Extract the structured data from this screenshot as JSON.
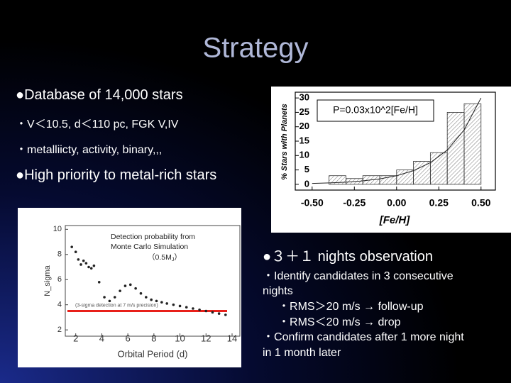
{
  "title": "Strategy",
  "left_bullets": [
    {
      "bullet": "●",
      "text": "Database of 14,000 stars"
    },
    {
      "bullet": "・",
      "text": "V＜10.5, d＜110 pc, FGK V,IV"
    },
    {
      "bullet": "・",
      "text": "metalliicty, activity, binary,,,"
    },
    {
      "bullet": "●",
      "text": "High priority to metal-rich stars"
    }
  ],
  "figure1": {
    "type": "histogram",
    "annotation": "P=0.03x10^2[Fe/H]",
    "ylabel": "% Stars with Planets",
    "xlabel": "[Fe/H]",
    "bins": [
      -0.5,
      -0.4,
      -0.3,
      -0.2,
      -0.1,
      0,
      0.1,
      0.2,
      0.3,
      0.4,
      0.5
    ],
    "values": [
      0,
      3,
      2,
      3,
      3,
      5,
      8,
      11,
      25,
      28
    ],
    "fit": {
      "x": [
        -0.5,
        -0.4,
        -0.3,
        -0.2,
        -0.1,
        0,
        0.1,
        0.2,
        0.3,
        0.4,
        0.5
      ],
      "y": [
        0.3,
        0.48,
        0.75,
        1.19,
        1.89,
        3,
        4.75,
        7.54,
        11.9,
        18.9,
        30
      ]
    },
    "xlim": [
      -0.6,
      0.585
    ],
    "ylim": [
      -2,
      32
    ],
    "xticks": [
      {
        "value": -0.5,
        "label": "-0.50"
      },
      {
        "value": -0.25,
        "label": "-0.25"
      },
      {
        "value": 0,
        "label": "0.00"
      },
      0.25,
      {
        "value": 0.5,
        "label": "0.50"
      }
    ],
    "yticks": [
      0,
      5,
      10,
      15,
      20,
      25,
      30
    ]
  },
  "figure2": {
    "type": "scatter",
    "annotation": [
      "Detection probability from",
      "Monte Carlo Simulation"
    ],
    "mass": {
      "prefix": "（0.5M",
      "sub": "J",
      "suffix": "）"
    },
    "threshold_label": "(3-sigma detection at 7 m/s precision)",
    "threshold": 3.5,
    "ylabel": "N_sigma",
    "xlabel": "Orbital Period (d)",
    "x": [
      1.7,
      2.0,
      2.2,
      2.4,
      2.6,
      2.8,
      3.0,
      3.2,
      3.4,
      3.8,
      4.2,
      4.6,
      5.0,
      5.4,
      5.8,
      6.2,
      6.6,
      7.0,
      7.4,
      7.8,
      8.2,
      8.6,
      9.0,
      9.5,
      10.0,
      10.5,
      11.0,
      11.5,
      12.0,
      12.5,
      13.0,
      13.5
    ],
    "y": [
      8.6,
      8.2,
      7.6,
      7.2,
      7.5,
      7.3,
      7.0,
      6.9,
      7.1,
      5.8,
      4.6,
      4.3,
      4.6,
      5.1,
      5.5,
      5.6,
      5.3,
      4.9,
      4.6,
      4.4,
      4.3,
      4.2,
      4.1,
      4.0,
      3.9,
      3.8,
      3.7,
      3.6,
      3.5,
      3.4,
      3.3,
      3.2
    ],
    "xlim": [
      1.2,
      14.6
    ],
    "ylim": [
      1.5,
      10.3
    ],
    "xticks": [
      2,
      4,
      6,
      8,
      10,
      12,
      14
    ],
    "yticks": [
      2,
      4,
      6,
      8,
      10
    ]
  },
  "right_bullets": [
    {
      "bullet": "●",
      "text": "３＋１ nights observation"
    },
    {
      "bullet": "・",
      "text": "Identify candidates in 3 consecutive"
    },
    {
      "bullet": "",
      "text": "nights"
    },
    {
      "bullet": "・",
      "text": "RMS＞20 m/s → follow-up"
    },
    {
      "bullet": "・",
      "text": "RMS＜20 m/s → drop"
    },
    {
      "bullet": "・",
      "text": "Confirm candidates after 1 more night"
    },
    {
      "bullet": "",
      "text": "in 1 month later"
    }
  ]
}
